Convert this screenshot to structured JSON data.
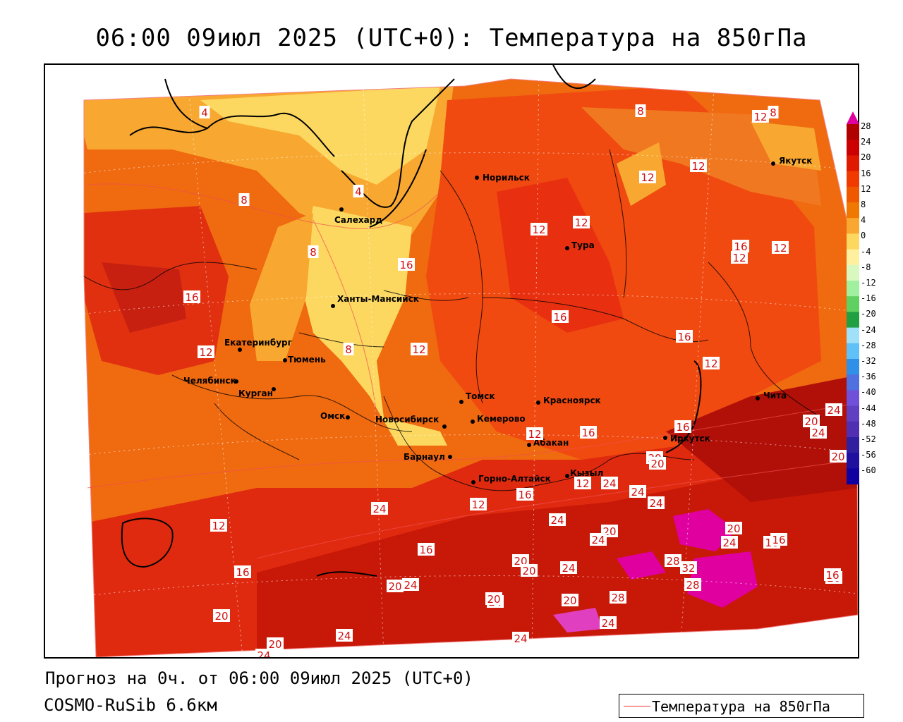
{
  "title": "06:00 09июл 2025 (UTC+0): Температура на 850гПа",
  "footer": {
    "forecast": "Прогноз на 0ч. от 06:00 09июл 2025 (UTC+0)",
    "model": "COSMO-RuSib 6.6км"
  },
  "legend": {
    "label": "Температура на 850гПа",
    "line_color": "#f03030"
  },
  "colorbar": {
    "labels": [
      "28",
      "24",
      "20",
      "16",
      "12",
      "8",
      "4",
      "0",
      "-4",
      "-8",
      "-12",
      "-16",
      "-20",
      "-24",
      "-28",
      "-32",
      "-36",
      "-40",
      "-44",
      "-48",
      "-52",
      "-56",
      "-60"
    ],
    "colors": [
      "#b00000",
      "#cc0000",
      "#e01a00",
      "#f03a00",
      "#f05800",
      "#f07800",
      "#f8a830",
      "#fcd860",
      "#fff0a0",
      "#d8f8c0",
      "#a0f0a0",
      "#60d060",
      "#20a040",
      "#a0e0f8",
      "#60c0f8",
      "#3090e8",
      "#5070e0",
      "#7050d8",
      "#6040c0",
      "#5030b0",
      "#3020a0",
      "#2010a0",
      "#1000a0"
    ],
    "top_color": "#e000a0"
  },
  "cities": [
    {
      "name": "Норильск"
    },
    {
      "name": "Якутск"
    },
    {
      "name": "Салехард"
    },
    {
      "name": "Тура"
    },
    {
      "name": "Ханты-Мансийск"
    },
    {
      "name": "Екатеринбург"
    },
    {
      "name": "Тюмень"
    },
    {
      "name": "Челябинск"
    },
    {
      "name": "Курган"
    },
    {
      "name": "Омск"
    },
    {
      "name": "Новосибирск"
    },
    {
      "name": "Томск"
    },
    {
      "name": "Кемерово"
    },
    {
      "name": "Красноярск"
    },
    {
      "name": "Барнаул"
    },
    {
      "name": "Абакан"
    },
    {
      "name": "Горно-Алтайск"
    },
    {
      "name": "Кызыл"
    },
    {
      "name": "Иркутск"
    },
    {
      "name": "Чита"
    }
  ],
  "contour_labels": [
    "4",
    "4",
    "8",
    "12",
    "8",
    "12",
    "12",
    "8",
    "8",
    "16",
    "12",
    "12",
    "12",
    "16",
    "16",
    "12",
    "12",
    "8",
    "16",
    "16",
    "12",
    "16",
    "12",
    "12",
    "20",
    "24",
    "24",
    "24",
    "20",
    "24",
    "20",
    "20",
    "24",
    "24",
    "20",
    "16",
    "20",
    "16",
    "16",
    "24",
    "12",
    "16",
    "20",
    "24",
    "20",
    "24",
    "24",
    "20",
    "24",
    "28",
    "28",
    "32",
    "28",
    "20",
    "24",
    "20",
    "24",
    "24",
    "24",
    "20",
    "16",
    "20",
    "24",
    "12",
    "12",
    "16",
    "20",
    "16"
  ]
}
